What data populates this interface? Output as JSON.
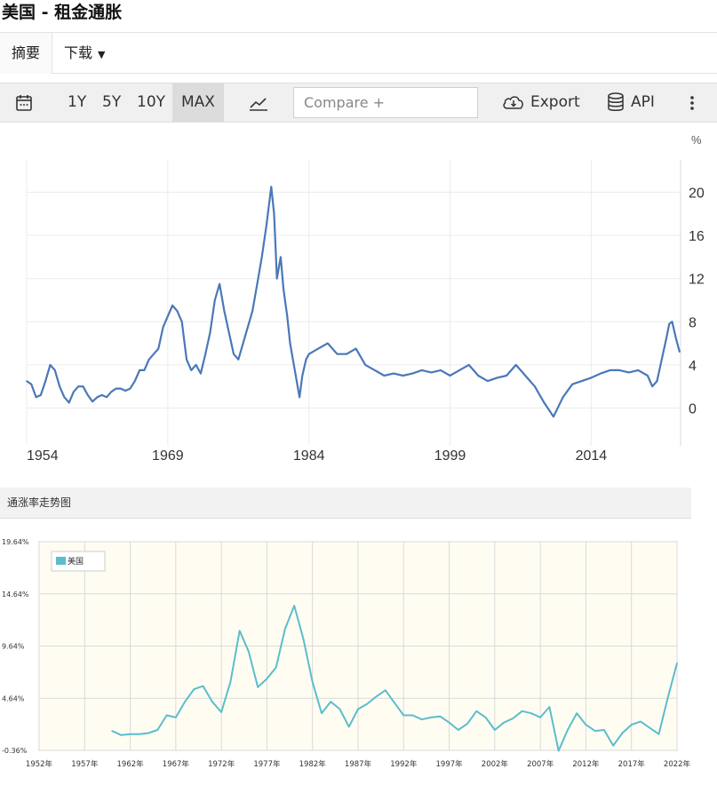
{
  "page_title": "美国 - 租金通胀",
  "tabs": {
    "summary": "摘要",
    "download": "下载"
  },
  "toolbar": {
    "ranges": [
      "1Y",
      "5Y",
      "10Y",
      "MAX"
    ],
    "selected_range": "MAX",
    "compare_placeholder": "Compare +",
    "export_label": "Export",
    "api_label": "API",
    "icons": [
      "calendar-icon",
      "line-chart-icon",
      "cloud-download-icon",
      "database-icon",
      "more-vertical-icon"
    ]
  },
  "colors": {
    "line1": "#4a78b8",
    "line2": "#5bbdcc",
    "plot2_bg": "#fffdf2",
    "toolbar_bg": "#f0f0f0"
  },
  "panel2": {
    "header": "通涨率走势图"
  },
  "chart_data": [
    {
      "type": "line",
      "unit_label": "%",
      "x_ticks": [
        1954,
        1969,
        1984,
        1999,
        2014
      ],
      "y_ticks": [
        0,
        4,
        8,
        12,
        16,
        20
      ],
      "ylim": [
        -3.5,
        23
      ],
      "xlim": [
        1954,
        2023.5
      ],
      "grid": true,
      "x": [
        1954,
        1954.5,
        1955,
        1955.5,
        1956,
        1956.5,
        1957,
        1957.5,
        1958,
        1958.5,
        1959,
        1959.5,
        1960,
        1960.5,
        1961,
        1961.5,
        1962,
        1962.5,
        1963,
        1963.5,
        1964,
        1964.5,
        1965,
        1965.5,
        1966,
        1966.5,
        1967,
        1967.5,
        1968,
        1968.5,
        1969,
        1969.5,
        1970,
        1970.5,
        1971,
        1971.5,
        1972,
        1972.5,
        1973,
        1973.5,
        1974,
        1974.5,
        1975,
        1975.5,
        1976,
        1976.5,
        1977,
        1977.5,
        1978,
        1978.5,
        1979,
        1979.5,
        1980,
        1980.3,
        1980.6,
        1981,
        1981.3,
        1981.7,
        1982,
        1982.5,
        1983,
        1983.3,
        1983.7,
        1984,
        1985,
        1986,
        1987,
        1988,
        1989,
        1990,
        1991,
        1992,
        1993,
        1994,
        1995,
        1996,
        1997,
        1998,
        1999,
        2000,
        2001,
        2002,
        2003,
        2004,
        2005,
        2006,
        2007,
        2008,
        2009,
        2010,
        2011,
        2012,
        2013,
        2014,
        2015,
        2016,
        2017,
        2018,
        2019,
        2020,
        2020.5,
        2021,
        2021.5,
        2022,
        2022.3,
        2022.6,
        2023,
        2023.4
      ],
      "y": [
        2.5,
        2.2,
        1.0,
        1.2,
        2.5,
        4.0,
        3.5,
        2.0,
        1.0,
        0.5,
        1.5,
        2.0,
        2.0,
        1.2,
        0.6,
        1.0,
        1.2,
        1.0,
        1.5,
        1.8,
        1.8,
        1.6,
        1.8,
        2.5,
        3.5,
        3.5,
        4.5,
        5.0,
        5.5,
        7.5,
        8.5,
        9.5,
        9.0,
        8.0,
        4.5,
        3.5,
        4.0,
        3.2,
        5.0,
        7.0,
        10.0,
        11.5,
        9.0,
        7.0,
        5.0,
        4.5,
        6.0,
        7.5,
        9.0,
        11.5,
        14.0,
        17.0,
        20.5,
        18.0,
        12.0,
        14.0,
        11.0,
        8.5,
        6.0,
        3.5,
        1.0,
        3.0,
        4.5,
        5.0,
        5.5,
        6.0,
        5.0,
        5.0,
        5.5,
        4.0,
        3.5,
        3.0,
        3.2,
        3.0,
        3.2,
        3.5,
        3.3,
        3.5,
        3.0,
        3.5,
        4.0,
        3.0,
        2.5,
        2.8,
        3.0,
        4.0,
        3.0,
        2.0,
        0.5,
        -0.8,
        1.0,
        2.2,
        2.5,
        2.8,
        3.2,
        3.5,
        3.5,
        3.3,
        3.5,
        3.0,
        2.0,
        2.5,
        4.5,
        6.5,
        7.8,
        8.0,
        6.5,
        5.2
      ]
    },
    {
      "type": "line",
      "legend": [
        "美国"
      ],
      "legend_position": "top-left",
      "y_ticks": [
        "19.64%",
        "14.64%",
        "9.64%",
        "4.64%",
        "-0.36%"
      ],
      "x_ticks": [
        "1952年",
        "1957年",
        "1962年",
        "1967年",
        "1972年",
        "1977年",
        "1982年",
        "1987年",
        "1992年",
        "1997年",
        "2002年",
        "2007年",
        "2012年",
        "2017年",
        "2022年"
      ],
      "ylim": [
        -0.36,
        19.64
      ],
      "xlim": [
        1952,
        2022
      ],
      "grid": true,
      "x": [
        1960,
        1961,
        1962,
        1963,
        1964,
        1965,
        1966,
        1967,
        1968,
        1969,
        1970,
        1971,
        1972,
        1973,
        1974,
        1975,
        1976,
        1977,
        1978,
        1979,
        1980,
        1981,
        1982,
        1983,
        1984,
        1985,
        1986,
        1987,
        1988,
        1989,
        1990,
        1991,
        1992,
        1993,
        1994,
        1995,
        1996,
        1997,
        1998,
        1999,
        2000,
        2001,
        2002,
        2003,
        2004,
        2005,
        2006,
        2007,
        2008,
        2009,
        2010,
        2011,
        2012,
        2013,
        2014,
        2015,
        2016,
        2017,
        2018,
        2019,
        2020,
        2021,
        2022
      ],
      "y": [
        1.5,
        1.1,
        1.2,
        1.2,
        1.3,
        1.6,
        3.0,
        2.8,
        4.3,
        5.5,
        5.8,
        4.3,
        3.3,
        6.2,
        11.1,
        9.1,
        5.7,
        6.5,
        7.6,
        11.3,
        13.5,
        10.3,
        6.2,
        3.2,
        4.3,
        3.6,
        1.9,
        3.6,
        4.1,
        4.8,
        5.4,
        4.2,
        3.0,
        3.0,
        2.6,
        2.8,
        2.9,
        2.3,
        1.6,
        2.2,
        3.4,
        2.8,
        1.6,
        2.3,
        2.7,
        3.4,
        3.2,
        2.8,
        3.8,
        -0.4,
        1.6,
        3.2,
        2.1,
        1.5,
        1.6,
        0.1,
        1.3,
        2.1,
        2.4,
        1.8,
        1.2,
        4.7,
        8.0
      ]
    }
  ]
}
